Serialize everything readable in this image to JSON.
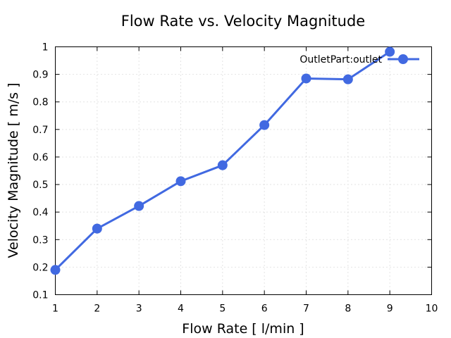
{
  "chart_data": {
    "type": "line",
    "title": "Flow Rate vs. Velocity Magnitude",
    "xlabel": "Flow Rate [ l/min ]",
    "ylabel": "Velocity Magnitude [ m/s ]",
    "xlim": [
      1,
      10
    ],
    "ylim": [
      0.1,
      1
    ],
    "x_ticks": [
      "1",
      "2",
      "3",
      "4",
      "5",
      "6",
      "7",
      "8",
      "9",
      "10"
    ],
    "y_ticks": [
      "0.1",
      "0.2",
      "0.3",
      "0.4",
      "0.5",
      "0.6",
      "0.7",
      "0.8",
      "0.9",
      "1"
    ],
    "grid": true,
    "legend_position": "top-right",
    "series": [
      {
        "name": "OutletPart:outlet",
        "color": "#4169e1",
        "x": [
          1,
          2,
          3,
          4,
          5,
          6,
          7,
          8,
          9
        ],
        "values": [
          0.19,
          0.34,
          0.422,
          0.512,
          0.57,
          0.716,
          0.885,
          0.882,
          0.982
        ]
      }
    ]
  }
}
